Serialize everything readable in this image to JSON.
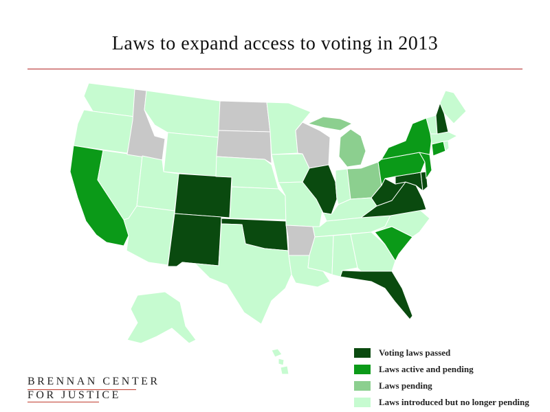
{
  "title": "Laws to expand access to voting in 2013",
  "colors": {
    "passed": "#0a4a0f",
    "active": "#0b9a18",
    "pending": "#8ccf8f",
    "introduced": "#c6fbd0",
    "none": "#c8c8c8",
    "border": "#ffffff"
  },
  "legend": [
    {
      "label": "Voting laws passed",
      "category": "passed"
    },
    {
      "label": "Laws active and pending",
      "category": "active"
    },
    {
      "label": "Laws pending",
      "category": "pending"
    },
    {
      "label": "Laws introduced but no longer pending",
      "category": "introduced"
    }
  ],
  "logo": {
    "line1": "BRENNAN CENTER",
    "line2": "FOR JUSTICE"
  },
  "states": {
    "WA": "introduced",
    "OR": "introduced",
    "CA": "active",
    "NV": "introduced",
    "ID": "none",
    "MT": "introduced",
    "WY": "introduced",
    "UT": "introduced",
    "AZ": "introduced",
    "CO": "passed",
    "NM": "passed",
    "ND": "none",
    "SD": "none",
    "NE": "introduced",
    "KS": "introduced",
    "OK": "passed",
    "TX": "introduced",
    "MN": "introduced",
    "IA": "introduced",
    "MO": "introduced",
    "AR": "none",
    "LA": "introduced",
    "WI": "none",
    "IL": "passed",
    "MI": "pending",
    "IN": "introduced",
    "OH": "pending",
    "KY": "introduced",
    "TN": "introduced",
    "MS": "introduced",
    "AL": "introduced",
    "GA": "introduced",
    "FL": "passed",
    "SC": "active",
    "NC": "introduced",
    "VA": "passed",
    "WV": "passed",
    "MD": "passed",
    "DE": "passed",
    "PA": "active",
    "NJ": "active",
    "NY": "active",
    "CT": "active",
    "RI": "introduced",
    "MA": "introduced",
    "VT": "introduced",
    "NH": "passed",
    "ME": "introduced",
    "AK": "introduced",
    "HI": "introduced"
  }
}
